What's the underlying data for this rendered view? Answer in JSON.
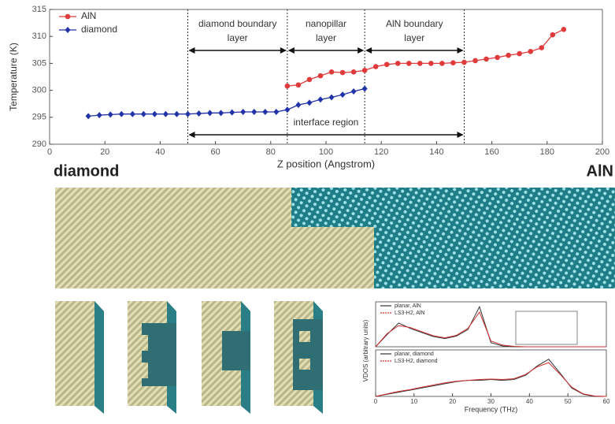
{
  "chart_data": [
    {
      "type": "line",
      "ylabel": "Temperature (K)",
      "xlabel": "Z position (Angstrom)",
      "xlim": [
        0,
        200
      ],
      "xticks": [
        0,
        20,
        40,
        60,
        80,
        100,
        120,
        140,
        160,
        180,
        200
      ],
      "ylim": [
        290,
        315
      ],
      "yticks": [
        290,
        295,
        300,
        305,
        310,
        315
      ],
      "legend": "upper left",
      "vlines": [
        50,
        86,
        114,
        150
      ],
      "annotations": [
        {
          "lines": [
            "diamond boundary",
            "layer"
          ],
          "from": 0,
          "to": 1
        },
        {
          "lines": [
            "nanopillar",
            "layer"
          ],
          "from": 1,
          "to": 2
        },
        {
          "lines": [
            "AlN boundary",
            "layer"
          ],
          "from": 2,
          "to": 3
        },
        {
          "lines": [
            "interface region"
          ],
          "from": 0,
          "to": 3
        }
      ],
      "series": [
        {
          "name": "AlN",
          "color": "#e03b3b",
          "marker": "circle",
          "x": [
            86,
            90,
            94,
            98,
            102,
            106,
            110,
            114,
            118,
            122,
            126,
            130,
            134,
            138,
            142,
            146,
            150,
            154,
            158,
            162,
            166,
            170,
            174,
            178,
            182,
            186
          ],
          "values": [
            300.8,
            301.0,
            302.0,
            302.7,
            303.4,
            303.3,
            303.4,
            303.7,
            304.4,
            304.8,
            305.0,
            305.0,
            305.0,
            305.0,
            305.0,
            305.1,
            305.2,
            305.5,
            305.8,
            306.1,
            306.5,
            306.8,
            307.2,
            307.9,
            310.3,
            311.3
          ]
        },
        {
          "name": "diamond",
          "color": "#2233a8",
          "marker": "diamond",
          "x": [
            14,
            18,
            22,
            26,
            30,
            34,
            38,
            42,
            46,
            50,
            54,
            58,
            62,
            66,
            70,
            74,
            78,
            82,
            86,
            90,
            94,
            98,
            102,
            106,
            110,
            114
          ],
          "values": [
            295.2,
            295.4,
            295.5,
            295.6,
            295.6,
            295.6,
            295.6,
            295.6,
            295.6,
            295.6,
            295.7,
            295.8,
            295.8,
            295.9,
            296.0,
            296.0,
            296.0,
            296.0,
            296.4,
            297.3,
            297.7,
            298.3,
            298.7,
            299.2,
            299.8,
            300.3
          ]
        }
      ]
    },
    {
      "type": "line",
      "xlim": [
        0,
        60
      ],
      "ylim": [
        0,
        1.1
      ],
      "legend": "upper left",
      "series": [
        {
          "name": "planar, AlN",
          "color": "#333333",
          "x": [
            0,
            3,
            6,
            9,
            12,
            15,
            18,
            21,
            24,
            27,
            30,
            33,
            36,
            39,
            42,
            45,
            48,
            51,
            54,
            57,
            60
          ],
          "values": [
            0,
            0.3,
            0.58,
            0.45,
            0.35,
            0.25,
            0.2,
            0.26,
            0.42,
            0.98,
            0.1,
            0.02,
            0,
            0,
            0,
            0,
            0,
            0,
            0,
            0,
            0
          ]
        },
        {
          "name": "LS3-H2, AlN",
          "color": "#d03030",
          "x": [
            0,
            3,
            6,
            9,
            12,
            15,
            18,
            21,
            24,
            27,
            30,
            33,
            36,
            39,
            42,
            45,
            48,
            51,
            54,
            57,
            60
          ],
          "values": [
            0,
            0.32,
            0.52,
            0.47,
            0.37,
            0.27,
            0.22,
            0.28,
            0.45,
            0.85,
            0.14,
            0.04,
            0.01,
            0,
            0,
            0,
            0,
            0,
            0,
            0,
            0
          ]
        }
      ]
    },
    {
      "type": "line",
      "xlabel": "Frequency (THz)",
      "ylabel": "VDOS (arbitrary units)",
      "xlim": [
        0,
        60
      ],
      "xticks": [
        0,
        10,
        20,
        30,
        40,
        50,
        60
      ],
      "ylim": [
        0,
        1.1
      ],
      "legend": "upper left",
      "series": [
        {
          "name": "planar, diamond",
          "color": "#333333",
          "x": [
            0,
            3,
            6,
            9,
            12,
            15,
            18,
            21,
            24,
            27,
            30,
            33,
            36,
            39,
            42,
            45,
            48,
            51,
            54,
            57,
            60
          ],
          "values": [
            0,
            0.05,
            0.1,
            0.15,
            0.2,
            0.25,
            0.3,
            0.35,
            0.38,
            0.38,
            0.4,
            0.38,
            0.4,
            0.5,
            0.72,
            0.88,
            0.55,
            0.2,
            0.05,
            0,
            0
          ]
        },
        {
          "name": "LS3-H2, diamond",
          "color": "#d03030",
          "x": [
            0,
            3,
            6,
            9,
            12,
            15,
            18,
            21,
            24,
            27,
            30,
            33,
            36,
            39,
            42,
            45,
            48,
            51,
            54,
            57,
            60
          ],
          "values": [
            0,
            0.06,
            0.12,
            0.16,
            0.22,
            0.27,
            0.32,
            0.36,
            0.38,
            0.4,
            0.41,
            0.4,
            0.42,
            0.52,
            0.7,
            0.8,
            0.52,
            0.22,
            0.06,
            0.01,
            0
          ]
        }
      ]
    }
  ],
  "images": {
    "left_label": "diamond",
    "right_label": "AlN"
  }
}
